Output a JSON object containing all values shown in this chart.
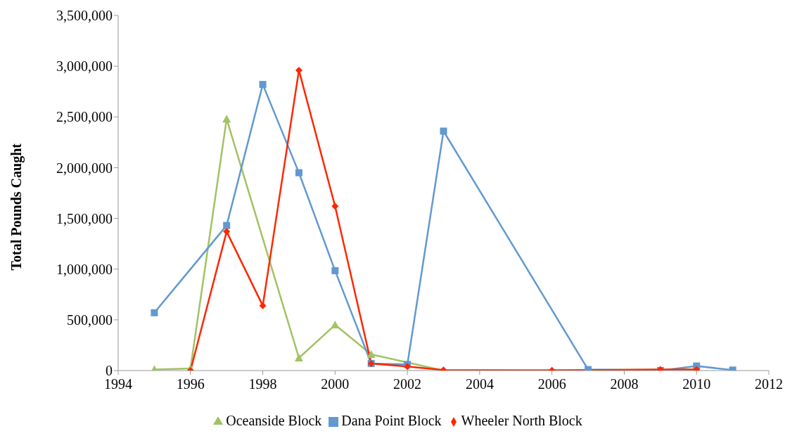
{
  "chart_data": {
    "type": "line",
    "ylabel": "Total Pounds Caught",
    "xlim": [
      1994,
      2012
    ],
    "xticks": [
      1994,
      1996,
      1998,
      2000,
      2002,
      2004,
      2006,
      2008,
      2010,
      2012
    ],
    "ylim": [
      0,
      3500000
    ],
    "yticks": [
      {
        "value": 0,
        "label": "0"
      },
      {
        "value": 500000,
        "label": "500,000"
      },
      {
        "value": 1000000,
        "label": "1,000,000"
      },
      {
        "value": 1500000,
        "label": "1,500,000"
      },
      {
        "value": 2000000,
        "label": "2,000,000"
      },
      {
        "value": 2500000,
        "label": "2,500,000"
      },
      {
        "value": 3000000,
        "label": "3,000,000"
      },
      {
        "value": 3500000,
        "label": "3,500,000"
      }
    ],
    "grid": false,
    "legend": "bottom",
    "line_style": "solid",
    "series": [
      {
        "name": "Wheeler North Block",
        "color": "#ff2600",
        "marker": "diamond",
        "x": [
          1996,
          1997,
          1998,
          1999,
          2000,
          2001,
          2002,
          2003,
          2006,
          2009,
          2010
        ],
        "values": [
          0,
          1370000,
          640000,
          2960000,
          1620000,
          70000,
          40000,
          5000,
          2000,
          10000,
          10000
        ]
      },
      {
        "name": "Dana Point Block",
        "color": "#6199d0",
        "marker": "square",
        "x": [
          1995,
          1997,
          1998,
          1999,
          2000,
          2001,
          2002,
          2003,
          2007,
          2009,
          2010,
          2011
        ],
        "values": [
          570000,
          1430000,
          2820000,
          1950000,
          985000,
          70000,
          60000,
          2360000,
          10000,
          0,
          45000,
          5000
        ]
      },
      {
        "name": "Oceanside Block",
        "color": "#a2c264",
        "marker": "triangle",
        "x": [
          1995,
          1996,
          1997,
          1999,
          2000,
          2001,
          2003,
          2010
        ],
        "values": [
          10000,
          20000,
          2480000,
          125000,
          450000,
          160000,
          0,
          10000
        ]
      }
    ]
  }
}
